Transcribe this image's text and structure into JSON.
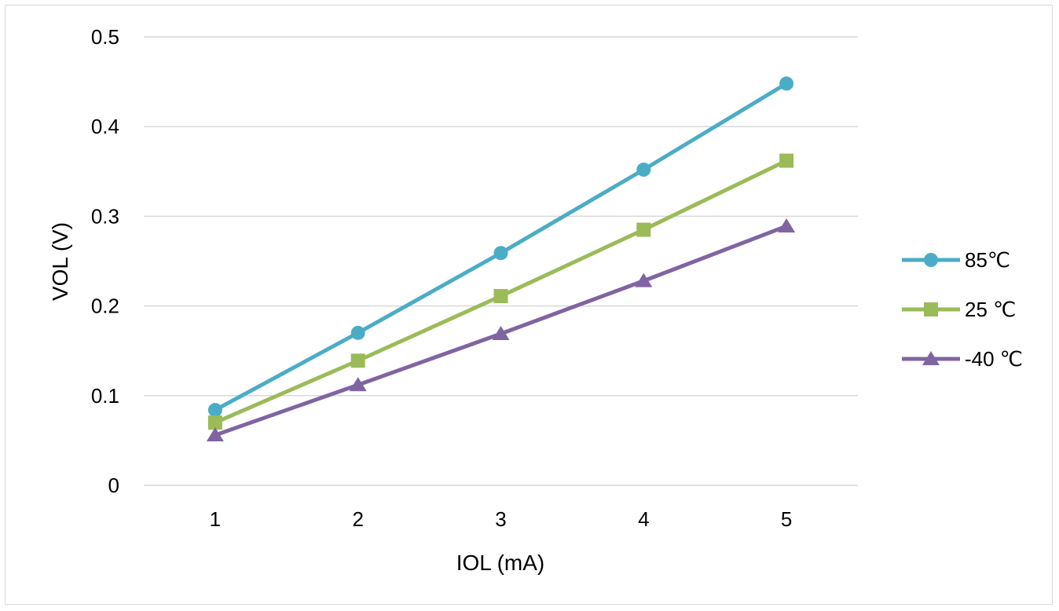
{
  "chart_data": {
    "type": "line",
    "title": "",
    "xlabel": "IOL (mA)",
    "ylabel": "VOL (V)",
    "categories": [
      "1",
      "2",
      "3",
      "4",
      "5"
    ],
    "ylim": [
      0,
      0.5
    ],
    "yticks": [
      "0",
      "0.1",
      "0.2",
      "0.3",
      "0.4",
      "0.5"
    ],
    "grid": "horizontal",
    "legend_position": "right",
    "series": [
      {
        "name": "85℃",
        "values": [
          0.084,
          0.17,
          0.259,
          0.352,
          0.448
        ],
        "color": "#4bacc6",
        "marker": "circle"
      },
      {
        "name": "25 ℃",
        "values": [
          0.07,
          0.139,
          0.211,
          0.285,
          0.362
        ],
        "color": "#9bbb59",
        "marker": "square"
      },
      {
        "name": "-40 ℃",
        "values": [
          0.056,
          0.112,
          0.169,
          0.228,
          0.289
        ],
        "color": "#8064a2",
        "marker": "triangle"
      }
    ]
  }
}
